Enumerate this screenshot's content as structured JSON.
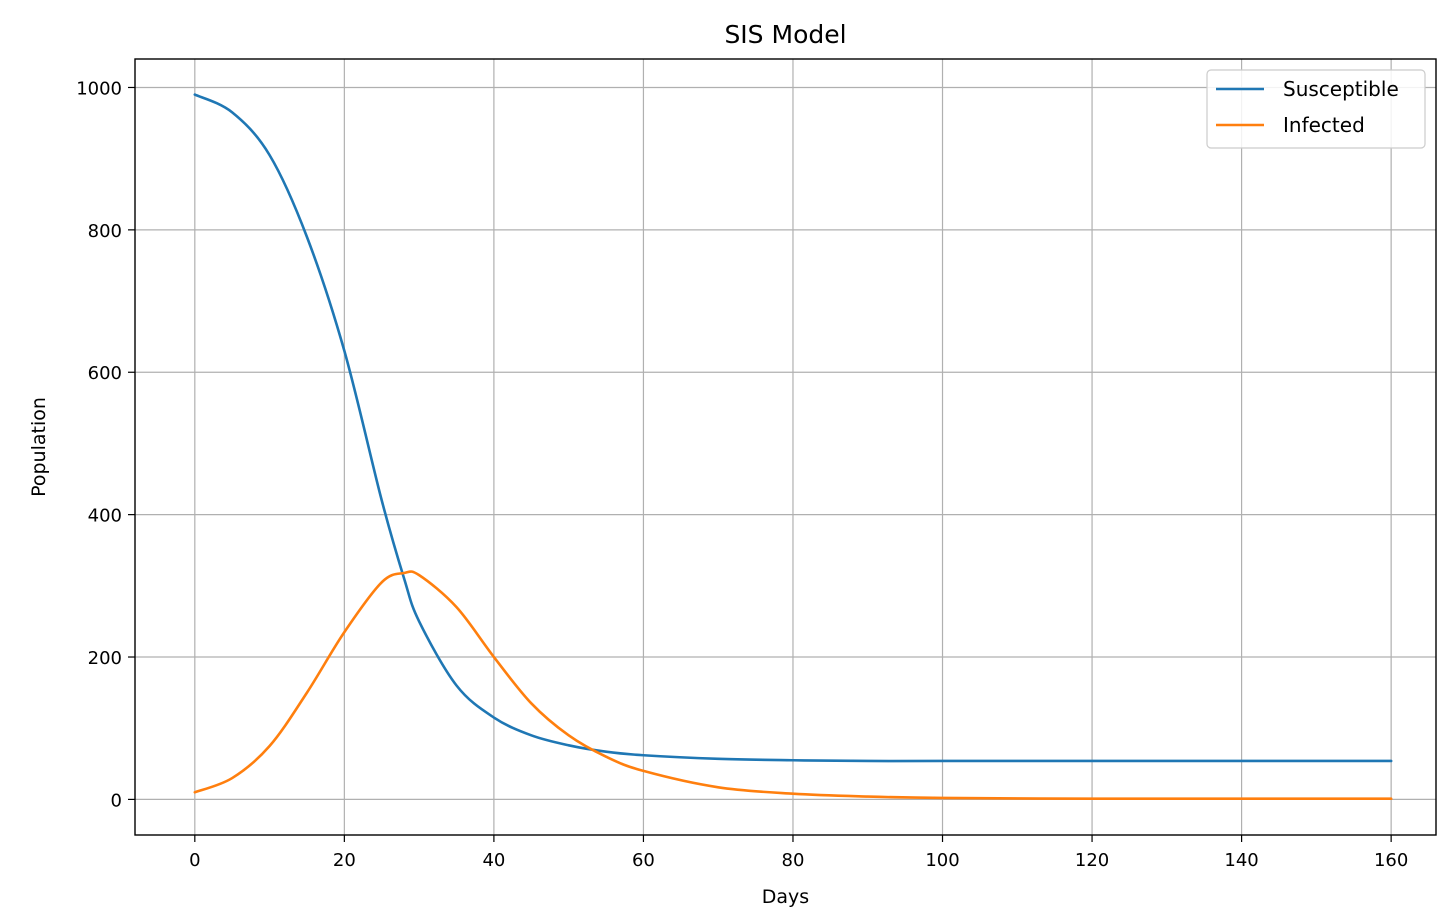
{
  "chart_data": {
    "type": "line",
    "title": "SIS Model",
    "xlabel": "Days",
    "ylabel": "Population",
    "xlim": [
      -8,
      166
    ],
    "ylim": [
      -50,
      1040
    ],
    "xticks": [
      0,
      20,
      40,
      60,
      80,
      100,
      120,
      140,
      160
    ],
    "yticks": [
      0,
      200,
      400,
      600,
      800,
      1000
    ],
    "grid": true,
    "legend": "top-right",
    "series": [
      {
        "name": "Susceptible",
        "color": "#1f77b4",
        "x": [
          0,
          5,
          10,
          15,
          20,
          25,
          28,
          30,
          35,
          40,
          45,
          50,
          55,
          60,
          70,
          80,
          90,
          100,
          120,
          140,
          160
        ],
        "y": [
          990,
          965,
          905,
          790,
          630,
          420,
          310,
          250,
          160,
          115,
          90,
          76,
          67,
          62,
          57,
          55,
          54,
          54,
          54,
          54,
          54
        ]
      },
      {
        "name": "Infected",
        "color": "#ff7f0e",
        "x": [
          0,
          5,
          10,
          15,
          20,
          25,
          28,
          30,
          35,
          40,
          45,
          50,
          55,
          60,
          70,
          80,
          90,
          100,
          120,
          140,
          160
        ],
        "y": [
          10,
          30,
          75,
          150,
          235,
          305,
          318,
          315,
          270,
          200,
          135,
          90,
          60,
          40,
          17,
          8,
          4,
          2,
          1,
          1,
          1
        ]
      }
    ]
  }
}
